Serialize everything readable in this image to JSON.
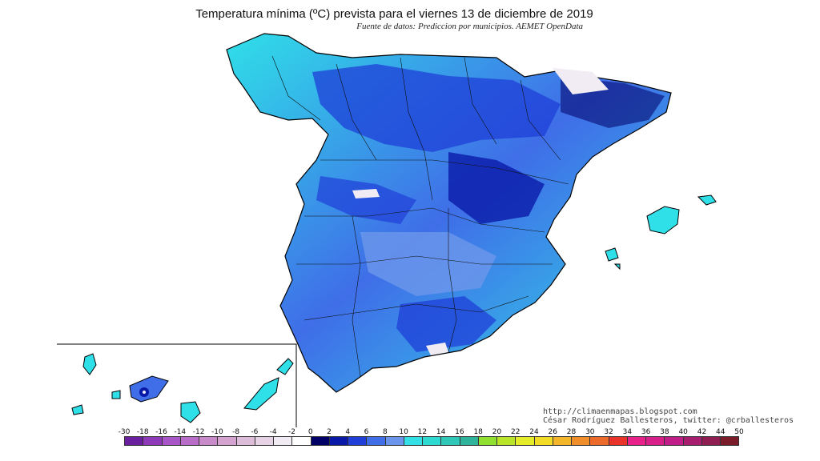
{
  "map": {
    "title": "Temperatura mínima (ºC) prevista para el viernes 13 de diciembre de 2019",
    "source": "Fuente de datos: Prediccion por municipios. AEMET OpenData",
    "credit_blog": "http://climaenmapas.blogspot.com",
    "credit_author": "César Rodríguez Ballesteros, twitter: @crballesteros",
    "unit": "ºC"
  },
  "legend": {
    "tick_labels": [
      "-30",
      "-18",
      "-16",
      "-14",
      "-12",
      "-10",
      "-8",
      "-6",
      "-4",
      "-2",
      "0",
      "2",
      "4",
      "6",
      "8",
      "10",
      "12",
      "14",
      "16",
      "18",
      "20",
      "22",
      "24",
      "26",
      "28",
      "30",
      "32",
      "34",
      "36",
      "38",
      "40",
      "42",
      "44",
      "50"
    ],
    "colors": [
      "#6a1f9e",
      "#8e3ab8",
      "#a855c8",
      "#b86ec9",
      "#c98ac9",
      "#d4a3cf",
      "#ddbcda",
      "#e6d4e6",
      "#f1ecf3",
      "#ffffff",
      "#000066",
      "#0a1aa8",
      "#1f3fd8",
      "#3f6ee8",
      "#6a95ea",
      "#32e0e6",
      "#2ed9d2",
      "#2fc7b8",
      "#2fb39b",
      "#8fe02f",
      "#b8e52a",
      "#e5ec2a",
      "#f3dc25",
      "#f3b52a",
      "#f08e2a",
      "#ec6a2a",
      "#e8322a",
      "#e8208a",
      "#d8208a",
      "#c21e8a",
      "#a81e6e",
      "#8e1e52",
      "#7a1c2a"
    ],
    "marker": "▲"
  },
  "regions": [
    "Península",
    "Islas Baleares",
    "Islas Canarias"
  ]
}
